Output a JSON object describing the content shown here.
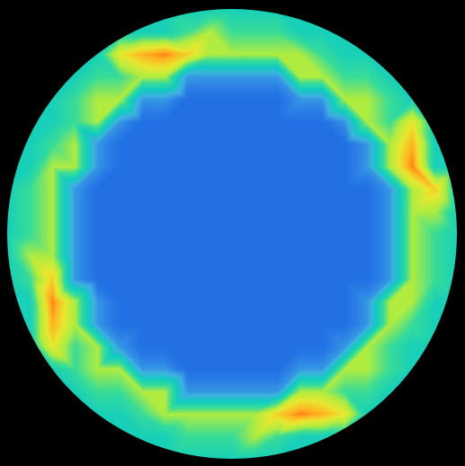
{
  "chart_data": {
    "type": "heatmap",
    "tick_labels": false,
    "zlim": [
      0,
      1
    ],
    "cells": [
      [
        null,
        null,
        null,
        null,
        null,
        null,
        null,
        0.42,
        0.42,
        0.42,
        0.42,
        0.42,
        0.42,
        0.42,
        null,
        null,
        null,
        null,
        null,
        null,
        null
      ],
      [
        null,
        null,
        null,
        null,
        null,
        0.42,
        0.42,
        0.42,
        0.5,
        0.6,
        0.5,
        0.5,
        0.5,
        0.42,
        0.42,
        0.42,
        null,
        null,
        null,
        null,
        null
      ],
      [
        null,
        null,
        null,
        null,
        0.42,
        0.7,
        0.8,
        0.85,
        0.75,
        0.6,
        0.6,
        0.6,
        0.6,
        0.6,
        0.5,
        0.42,
        0.42,
        null,
        null,
        null,
        null
      ],
      [
        null,
        null,
        null,
        0.42,
        0.5,
        0.5,
        0.6,
        0.6,
        0.25,
        0.25,
        0.25,
        0.25,
        0.25,
        0.6,
        0.6,
        0.5,
        0.5,
        0.42,
        null,
        null,
        null
      ],
      [
        null,
        null,
        0.42,
        0.5,
        0.6,
        0.6,
        0.25,
        0.25,
        0.15,
        0.15,
        0.15,
        0.15,
        0.15,
        0.25,
        0.25,
        0.6,
        0.6,
        0.5,
        0.42,
        null,
        null
      ],
      [
        null,
        0.42,
        0.42,
        0.5,
        0.6,
        0.25,
        0.15,
        0.15,
        0.15,
        0.15,
        0.15,
        0.15,
        0.15,
        0.15,
        0.15,
        0.25,
        0.6,
        0.5,
        0.7,
        0.42,
        null
      ],
      [
        null,
        0.42,
        0.5,
        0.6,
        0.25,
        0.15,
        0.15,
        0.15,
        0.15,
        0.15,
        0.15,
        0.15,
        0.15,
        0.15,
        0.15,
        0.15,
        0.25,
        0.6,
        0.8,
        0.42,
        null
      ],
      [
        0.42,
        0.42,
        0.6,
        0.6,
        0.25,
        0.15,
        0.15,
        0.15,
        0.15,
        0.15,
        0.15,
        0.15,
        0.15,
        0.15,
        0.15,
        0.15,
        0.25,
        0.6,
        0.85,
        0.42,
        0.42
      ],
      [
        0.42,
        0.5,
        0.6,
        0.25,
        0.15,
        0.15,
        0.15,
        0.15,
        0.15,
        0.15,
        0.15,
        0.15,
        0.15,
        0.15,
        0.15,
        0.15,
        0.15,
        0.25,
        0.6,
        0.75,
        0.42
      ],
      [
        0.42,
        0.5,
        0.6,
        0.25,
        0.15,
        0.15,
        0.15,
        0.15,
        0.15,
        0.15,
        0.15,
        0.15,
        0.15,
        0.15,
        0.15,
        0.15,
        0.15,
        0.25,
        0.6,
        0.6,
        0.42
      ],
      [
        0.42,
        0.5,
        0.6,
        0.25,
        0.15,
        0.15,
        0.15,
        0.15,
        0.15,
        0.15,
        0.15,
        0.15,
        0.15,
        0.15,
        0.15,
        0.15,
        0.15,
        0.25,
        0.6,
        0.5,
        0.42
      ],
      [
        0.42,
        0.6,
        0.6,
        0.25,
        0.15,
        0.15,
        0.15,
        0.15,
        0.15,
        0.15,
        0.15,
        0.15,
        0.15,
        0.15,
        0.15,
        0.15,
        0.15,
        0.25,
        0.6,
        0.5,
        0.42
      ],
      [
        0.42,
        0.5,
        0.75,
        0.25,
        0.15,
        0.15,
        0.15,
        0.15,
        0.15,
        0.15,
        0.15,
        0.15,
        0.15,
        0.15,
        0.15,
        0.15,
        0.15,
        0.25,
        0.6,
        0.5,
        0.42
      ],
      [
        0.42,
        0.42,
        0.85,
        0.6,
        0.25,
        0.15,
        0.15,
        0.15,
        0.15,
        0.15,
        0.15,
        0.15,
        0.15,
        0.15,
        0.15,
        0.15,
        0.25,
        0.6,
        0.6,
        0.42,
        0.42
      ],
      [
        null,
        0.42,
        0.8,
        0.6,
        0.25,
        0.15,
        0.15,
        0.15,
        0.15,
        0.15,
        0.15,
        0.15,
        0.15,
        0.15,
        0.15,
        0.15,
        0.25,
        0.6,
        0.5,
        0.42,
        null
      ],
      [
        null,
        0.42,
        0.7,
        0.5,
        0.6,
        0.25,
        0.15,
        0.15,
        0.15,
        0.15,
        0.15,
        0.15,
        0.15,
        0.15,
        0.15,
        0.25,
        0.6,
        0.5,
        0.42,
        0.42,
        null
      ],
      [
        null,
        null,
        0.42,
        0.5,
        0.6,
        0.6,
        0.25,
        0.25,
        0.15,
        0.15,
        0.15,
        0.15,
        0.15,
        0.25,
        0.25,
        0.6,
        0.6,
        0.5,
        0.42,
        null,
        null
      ],
      [
        null,
        null,
        null,
        0.42,
        0.5,
        0.5,
        0.6,
        0.6,
        0.25,
        0.25,
        0.25,
        0.25,
        0.25,
        0.6,
        0.6,
        0.5,
        0.5,
        0.42,
        null,
        null,
        null
      ],
      [
        null,
        null,
        null,
        null,
        0.42,
        0.42,
        0.5,
        0.6,
        0.6,
        0.6,
        0.6,
        0.6,
        0.75,
        0.85,
        0.8,
        0.7,
        0.42,
        null,
        null,
        null,
        null
      ],
      [
        null,
        null,
        null,
        null,
        null,
        0.42,
        0.42,
        0.42,
        0.5,
        0.5,
        0.5,
        0.6,
        0.5,
        0.42,
        0.42,
        0.42,
        null,
        null,
        null,
        null,
        null
      ],
      [
        null,
        null,
        null,
        null,
        null,
        null,
        null,
        0.42,
        0.42,
        0.42,
        0.42,
        0.42,
        0.42,
        0.42,
        null,
        null,
        null,
        null,
        null,
        null,
        null
      ]
    ]
  }
}
